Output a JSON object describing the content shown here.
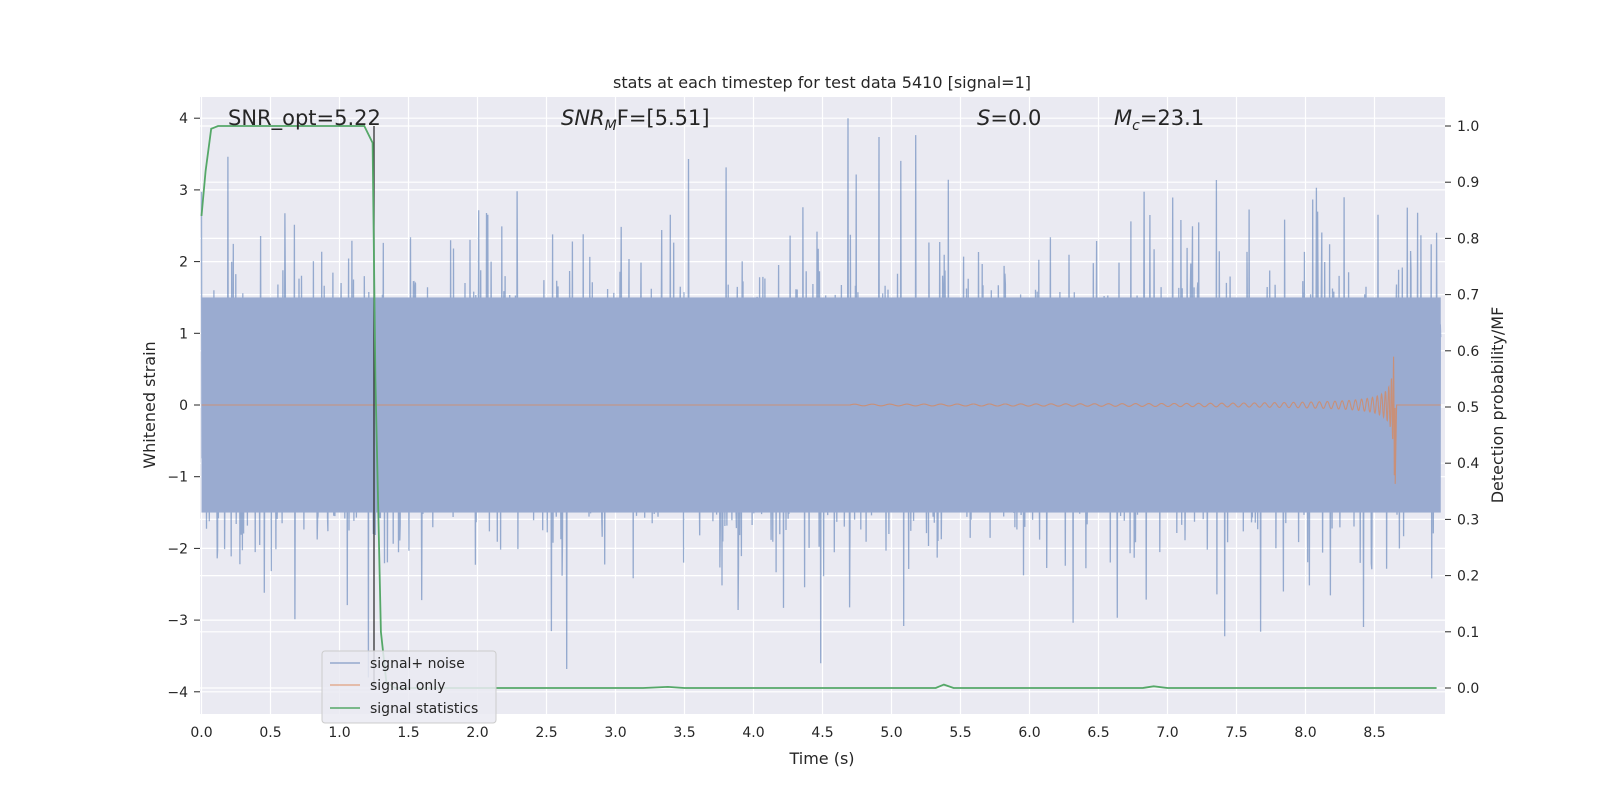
{
  "chart_data": {
    "type": "line",
    "title": "stats at each timestep for test data 5410 [signal=1]",
    "xlabel": "Time (s)",
    "ylabel": "Whitened strain",
    "y2label": "Detection probability/MF",
    "xlim": [
      0.0,
      9.0
    ],
    "ylim": [
      -4.2,
      4.4
    ],
    "y2lim": [
      -0.05,
      1.05
    ],
    "xticks": [
      "0.0",
      "0.5",
      "1.0",
      "1.5",
      "2.0",
      "2.5",
      "3.0",
      "3.5",
      "4.0",
      "4.5",
      "5.0",
      "5.5",
      "6.0",
      "6.5",
      "7.0",
      "7.5",
      "8.0",
      "8.5"
    ],
    "yticks": [
      "4",
      "3",
      "2",
      "1",
      "0",
      "−1",
      "−2",
      "−3",
      "−4"
    ],
    "y2ticks": [
      "1.0",
      "0.9",
      "0.8",
      "0.7",
      "0.6",
      "0.5",
      "0.4",
      "0.3",
      "0.2",
      "0.1",
      "0.0"
    ],
    "grid": true,
    "legend_position": "lower-left",
    "annotations": {
      "snr_opt": "SNR_opt=5.22",
      "snr_mf_var": "SNR",
      "snr_mf_sub": "M",
      "snr_mf_rest": "F=[5.51]",
      "s_var": "S",
      "s_rest": "=0.0",
      "mc_var": "M",
      "mc_sub": "c",
      "mc_rest": "=23.1"
    },
    "vertical_line_x": 1.25,
    "series": [
      {
        "name": "signal+ noise",
        "color": "#4c72b0",
        "axis": "left",
        "description_values": {
          "core_amplitude": 1.5,
          "peak_max": 4.0,
          "peak_min": -3.8
        }
      },
      {
        "name": "signal only",
        "color": "#dd8452",
        "axis": "left",
        "chirp": {
          "start": 4.7,
          "merger": 8.65,
          "peak_amplitude": 1.2
        }
      },
      {
        "name": "signal statistics",
        "color": "#55a868",
        "axis": "right",
        "x": [
          0.0,
          0.03,
          0.07,
          0.12,
          0.2,
          0.5,
          0.9,
          1.1,
          1.18,
          1.24,
          1.26,
          1.3,
          1.34,
          1.4,
          2.0,
          3.2,
          3.38,
          3.5,
          5.0,
          5.32,
          5.38,
          5.45,
          6.5,
          6.82,
          6.9,
          7.0,
          8.0,
          8.5,
          8.9,
          8.95
        ],
        "y": [
          0.84,
          0.92,
          0.995,
          1.0,
          1.0,
          1.0,
          1.0,
          1.0,
          1.0,
          0.97,
          0.55,
          0.1,
          0.01,
          0.0,
          0.0,
          0.0,
          0.002,
          0.0,
          0.0,
          0.0,
          0.006,
          0.0,
          0.0,
          0.0,
          0.003,
          0.0,
          0.0,
          0.0,
          0.0,
          0.0
        ]
      }
    ]
  }
}
